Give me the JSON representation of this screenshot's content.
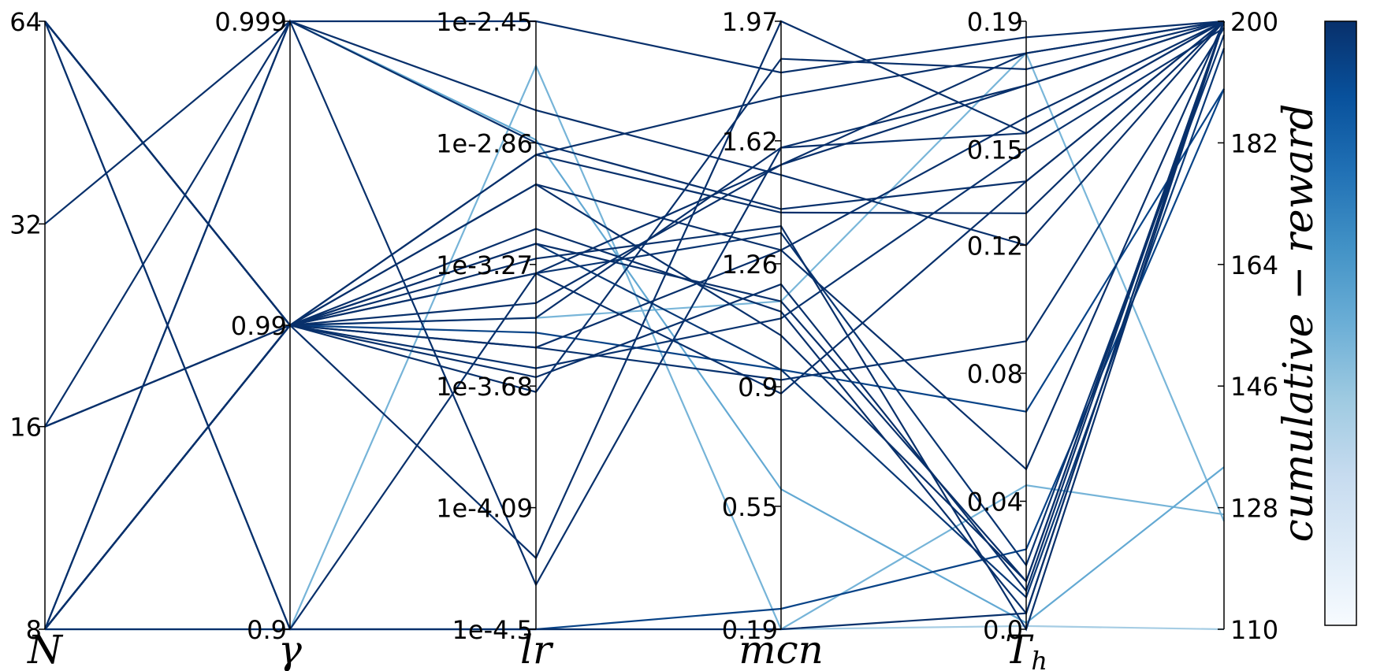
{
  "chart_data": {
    "type": "parallel_coordinates",
    "axes": [
      {
        "name": "N",
        "ticks": [
          "8",
          "16",
          "32",
          "64"
        ],
        "tick_values": [
          8,
          16,
          32,
          64
        ],
        "range": [
          8,
          64
        ]
      },
      {
        "name": "γ",
        "ticks": [
          "0.9",
          "0.99",
          "0.999"
        ],
        "tick_values": [
          0.9,
          0.99,
          0.999
        ],
        "range": [
          0.9,
          0.999
        ]
      },
      {
        "name": "lr",
        "ticks": [
          "1e-4.5",
          "1e-4.09",
          "1e-3.68",
          "1e-3.27",
          "1e-2.86",
          "1e-2.45"
        ],
        "tick_values": [
          -4.5,
          -4.09,
          -3.68,
          -3.27,
          -2.86,
          -2.45
        ],
        "range": [
          -4.5,
          -2.45
        ]
      },
      {
        "name": "mcn",
        "ticks": [
          "0.19",
          "0.55",
          "0.9",
          "1.26",
          "1.62",
          "1.97"
        ],
        "tick_values": [
          0.19,
          0.55,
          0.9,
          1.26,
          1.62,
          1.97
        ],
        "range": [
          0.19,
          1.97
        ]
      },
      {
        "name": "T_h",
        "ticks": [
          "0.0",
          "0.04",
          "0.08",
          "0.12",
          "0.15",
          "0.19"
        ],
        "tick_values": [
          0.0,
          0.04,
          0.08,
          0.12,
          0.15,
          0.19
        ],
        "range": [
          0.0,
          0.19
        ]
      },
      {
        "name": "",
        "ticks": [
          "110",
          "128",
          "146",
          "164",
          "182",
          "200"
        ],
        "tick_values": [
          110,
          128,
          146,
          164,
          182,
          200
        ],
        "range": [
          110,
          200
        ]
      }
    ],
    "colorbar": {
      "label": "cumulative − reward",
      "range": [
        110,
        200
      ],
      "ticks": [
        "110",
        "128",
        "146",
        "164",
        "182",
        "200"
      ],
      "colormap": [
        "#f7fbff",
        "#deebf7",
        "#c6dbef",
        "#9ecae1",
        "#6baed6",
        "#4292c6",
        "#2171b5",
        "#08519c",
        "#08306b"
      ]
    },
    "series": [
      {
        "values": [
          64,
          0.99,
          -3.4,
          1.55,
          0.17,
          200
        ]
      },
      {
        "values": [
          64,
          0.99,
          -3.55,
          1.3,
          0.16,
          200
        ]
      },
      {
        "values": [
          64,
          0.99,
          -3.62,
          1.1,
          0.15,
          199
        ]
      },
      {
        "values": [
          64,
          0.99,
          -3.2,
          0.95,
          0.01,
          196
        ]
      },
      {
        "values": [
          64,
          0.99,
          -3.0,
          1.05,
          0.015,
          200
        ]
      },
      {
        "values": [
          64,
          0.99,
          -3.65,
          1.2,
          0.012,
          200
        ]
      },
      {
        "values": [
          64,
          0.99,
          -3.3,
          1.35,
          0.02,
          198
        ]
      },
      {
        "values": [
          64,
          0.9,
          -4.5,
          0.19,
          0.005,
          200
        ]
      },
      {
        "values": [
          64,
          0.9,
          -4.5,
          0.25,
          0.025,
          190
        ]
      },
      {
        "values": [
          32,
          0.999,
          -2.45,
          1.82,
          0.185,
          200
        ]
      },
      {
        "values": [
          16,
          0.999,
          -2.75,
          1.52,
          0.12,
          200
        ]
      },
      {
        "values": [
          16,
          0.99,
          -2.9,
          1.41,
          0.13,
          200
        ]
      },
      {
        "values": [
          16,
          0.99,
          -3.25,
          1.37,
          0.0,
          200
        ]
      },
      {
        "values": [
          16,
          0.99,
          -3.55,
          0.92,
          0.09,
          199
        ]
      },
      {
        "values": [
          8,
          0.999,
          -2.86,
          1.42,
          0.14,
          200
        ]
      },
      {
        "values": [
          8,
          0.999,
          -4.35,
          1.6,
          0.155,
          200
        ]
      },
      {
        "values": [
          8,
          0.99,
          -2.9,
          1.75,
          0.18,
          200
        ]
      },
      {
        "values": [
          8,
          0.99,
          -3.0,
          1.3,
          0.05,
          200
        ]
      },
      {
        "values": [
          8,
          0.99,
          -3.15,
          1.12,
          0.005,
          200
        ]
      },
      {
        "values": [
          8,
          0.99,
          -3.45,
          1.6,
          0.17,
          200
        ]
      },
      {
        "values": [
          8,
          0.99,
          -3.5,
          0.95,
          0.068,
          190
        ]
      },
      {
        "values": [
          8,
          0.99,
          -4.26,
          1.97,
          0.155,
          200
        ]
      },
      {
        "values": [
          8,
          0.99,
          -3.7,
          1.86,
          0.175,
          200
        ]
      },
      {
        "values": [
          8,
          0.99,
          -3.3,
          0.88,
          0.14,
          200
        ]
      },
      {
        "values": [
          8,
          0.99,
          -3.2,
          1.15,
          0.015,
          200
        ]
      },
      {
        "values": [
          8,
          0.9,
          -3.3,
          1.55,
          0.18,
          200
        ]
      },
      {
        "values": [
          8,
          0.999,
          -2.85,
          0.6,
          0.002,
          134
        ]
      },
      {
        "values": [
          8,
          0.99,
          -3.45,
          1.15,
          0.18,
          126
        ]
      },
      {
        "values": [
          8,
          0.9,
          -2.6,
          0.19,
          0.045,
          127
        ]
      },
      {
        "values": [
          8,
          0.9,
          -4.5,
          0.19,
          0.001,
          110
        ]
      }
    ]
  }
}
